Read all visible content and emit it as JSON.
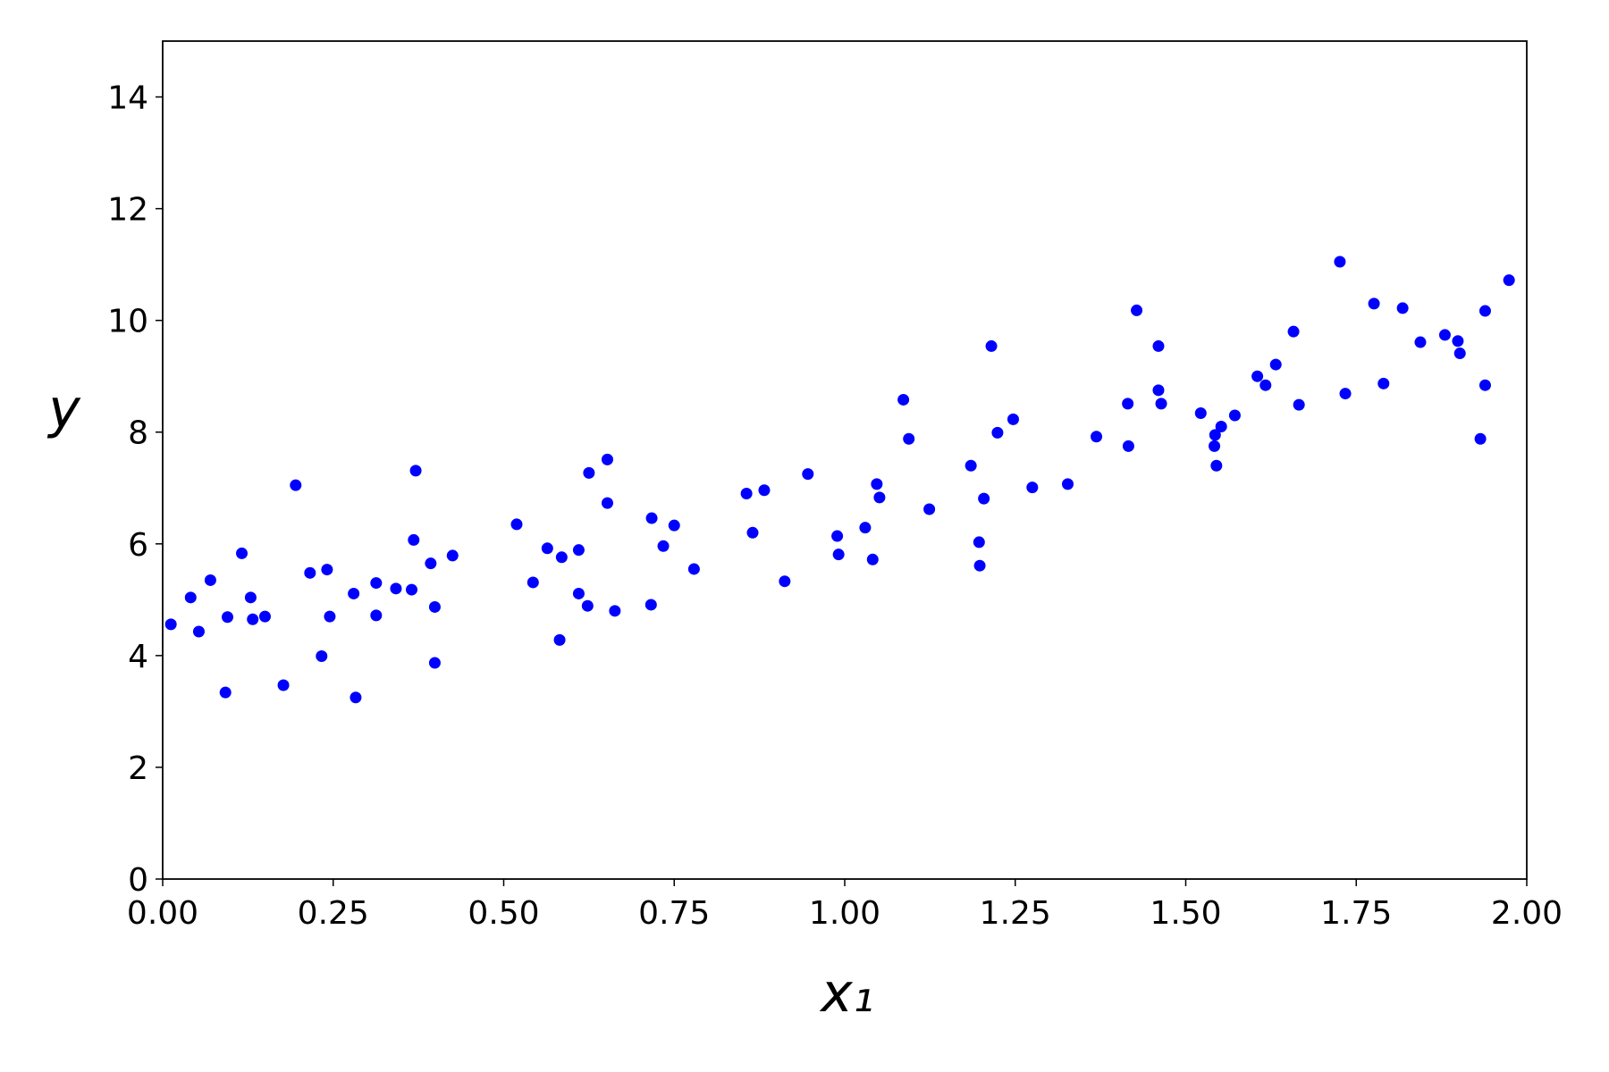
{
  "chart_data": {
    "type": "scatter",
    "xlabel": "x₁",
    "ylabel": "y",
    "color": "#0000ff",
    "xlim": [
      0,
      2
    ],
    "ylim": [
      0,
      15
    ],
    "xticks": [
      {
        "value": 0,
        "label": "0.00"
      },
      {
        "value": 0.25,
        "label": "0.25"
      },
      {
        "value": 0.5,
        "label": "0.50"
      },
      {
        "value": 0.75,
        "label": "0.75"
      },
      {
        "value": 1,
        "label": "1.00"
      },
      {
        "value": 1.25,
        "label": "1.25"
      },
      {
        "value": 1.5,
        "label": "1.50"
      },
      {
        "value": 1.75,
        "label": "1.75"
      },
      {
        "value": 2,
        "label": "2.00"
      }
    ],
    "yticks": [
      0,
      2,
      4,
      6,
      8,
      10,
      12,
      14
    ],
    "x": [
      0.012,
      0.041,
      0.053,
      0.07,
      0.092,
      0.095,
      0.116,
      0.129,
      0.132,
      0.15,
      0.177,
      0.195,
      0.216,
      0.233,
      0.241,
      0.245,
      0.28,
      0.283,
      0.313,
      0.313,
      0.342,
      0.365,
      0.368,
      0.371,
      0.393,
      0.399,
      0.399,
      0.425,
      0.519,
      0.543,
      0.564,
      0.585,
      0.582,
      0.61,
      0.61,
      0.623,
      0.625,
      0.652,
      0.652,
      0.663,
      0.716,
      0.717,
      0.734,
      0.75,
      0.779,
      0.856,
      0.865,
      0.882,
      0.912,
      0.946,
      0.989,
      0.991,
      1.03,
      1.041,
      1.047,
      1.051,
      1.086,
      1.094,
      1.124,
      1.185,
      1.197,
      1.198,
      1.204,
      1.215,
      1.224,
      1.247,
      1.275,
      1.327,
      1.369,
      1.415,
      1.416,
      1.428,
      1.46,
      1.46,
      1.464,
      1.522,
      1.542,
      1.543,
      1.545,
      1.552,
      1.572,
      1.605,
      1.617,
      1.632,
      1.658,
      1.666,
      1.726,
      1.734,
      1.776,
      1.79,
      1.818,
      1.844,
      1.88,
      1.899,
      1.902,
      1.932,
      1.939,
      1.939,
      1.974
    ],
    "values": [
      4.56,
      5.04,
      4.43,
      5.35,
      3.34,
      4.69,
      5.83,
      5.04,
      4.65,
      4.7,
      3.47,
      7.05,
      5.48,
      3.99,
      5.54,
      4.7,
      5.11,
      3.25,
      5.3,
      4.72,
      5.2,
      5.18,
      6.07,
      7.31,
      5.65,
      4.87,
      3.87,
      5.79,
      6.35,
      5.31,
      5.92,
      5.76,
      4.28,
      5.89,
      5.11,
      4.89,
      7.27,
      7.51,
      6.73,
      4.8,
      4.91,
      6.46,
      5.96,
      6.33,
      5.55,
      6.9,
      6.2,
      6.96,
      5.33,
      7.25,
      6.14,
      5.81,
      6.29,
      5.72,
      7.07,
      6.83,
      8.58,
      7.88,
      6.62,
      7.4,
      6.03,
      5.61,
      6.81,
      9.54,
      7.99,
      8.23,
      7.01,
      7.07,
      7.92,
      8.51,
      7.75,
      10.18,
      8.75,
      9.54,
      8.51,
      8.34,
      7.75,
      7.95,
      7.4,
      8.1,
      8.3,
      9.0,
      8.84,
      9.21,
      9.8,
      8.49,
      11.05,
      8.69,
      10.3,
      8.87,
      10.22,
      9.61,
      9.74,
      9.63,
      9.41,
      7.88,
      8.84,
      10.17,
      10.72
    ]
  }
}
